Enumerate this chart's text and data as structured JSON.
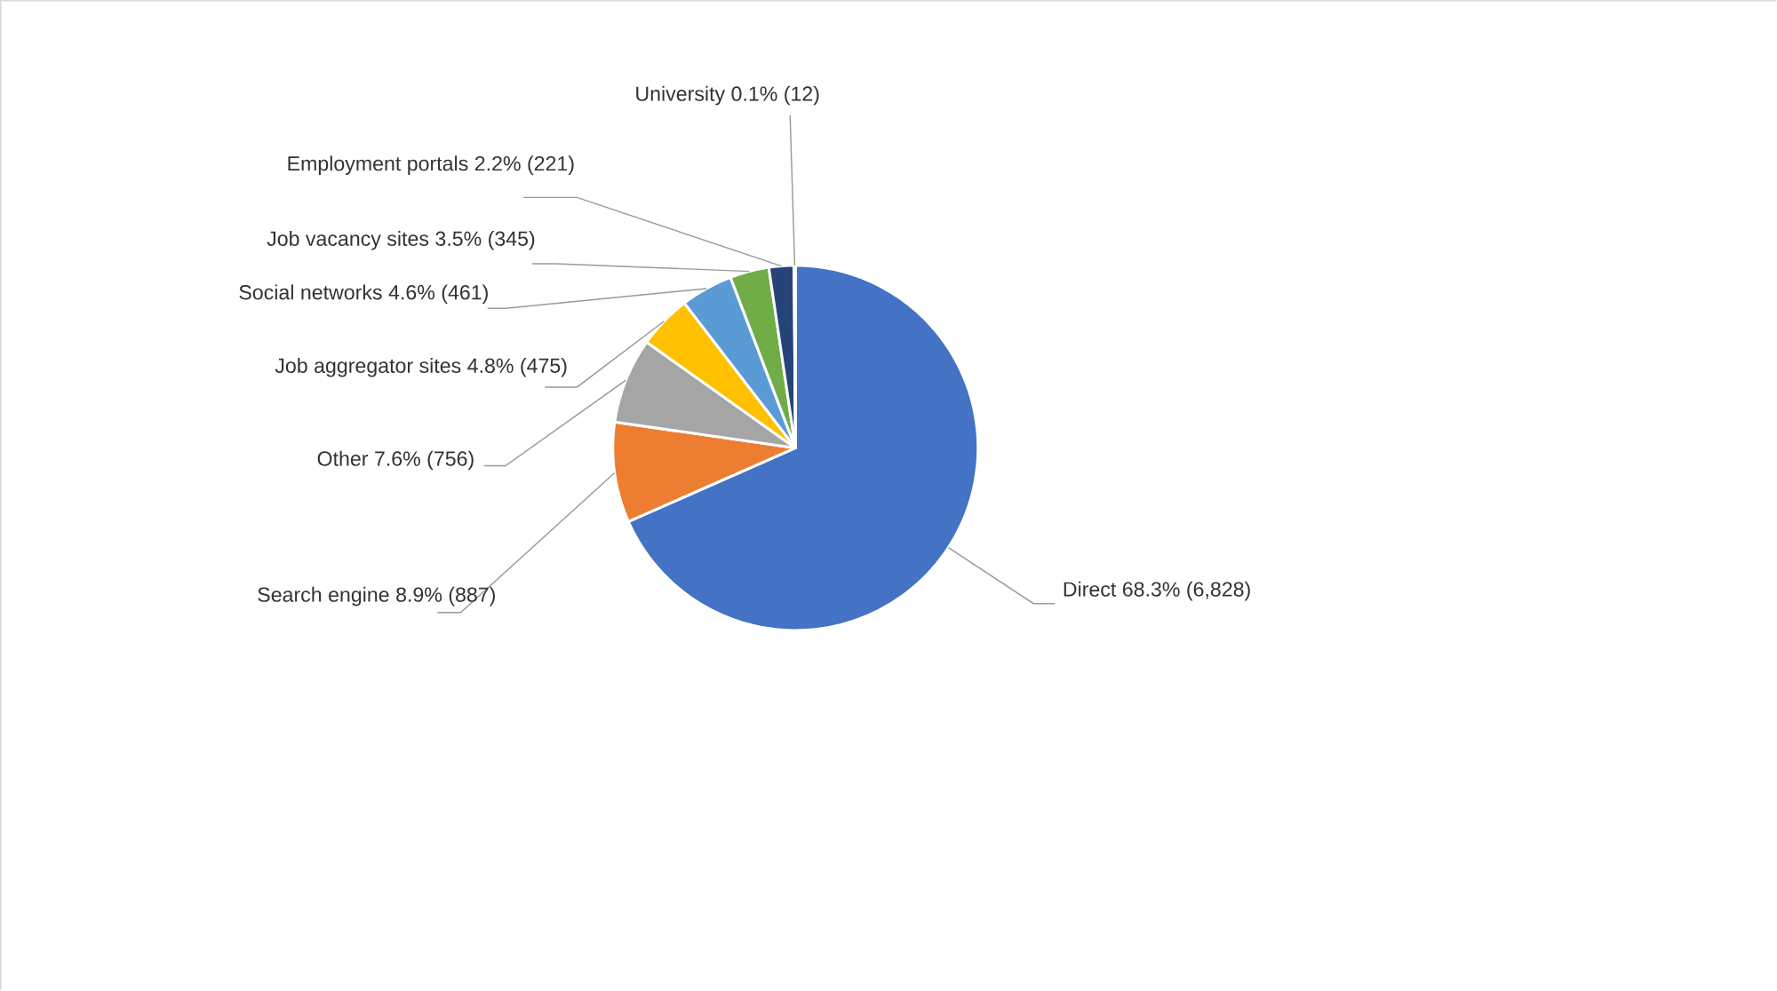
{
  "chart_data": {
    "type": "pie",
    "categories": [
      "Direct",
      "Search engine",
      "Other",
      "Job aggregator sites",
      "Social networks",
      "Job vacancy sites",
      "Employment portals",
      "University"
    ],
    "values": [
      6828,
      887,
      756,
      475,
      461,
      345,
      221,
      12
    ],
    "colors": [
      "#4472c4",
      "#ed7d31",
      "#a5a5a5",
      "#ffc000",
      "#5b9bd5",
      "#70ad47",
      "#264478",
      "#9e480e"
    ],
    "value_labels": [
      "68.3% (6,828)",
      "8.9% (887)",
      "7.6% (756)",
      "4.8% (475)",
      "4.6% (461)",
      "3.5% (345)",
      "2.2% (221)",
      "0.1% (12)"
    ]
  }
}
